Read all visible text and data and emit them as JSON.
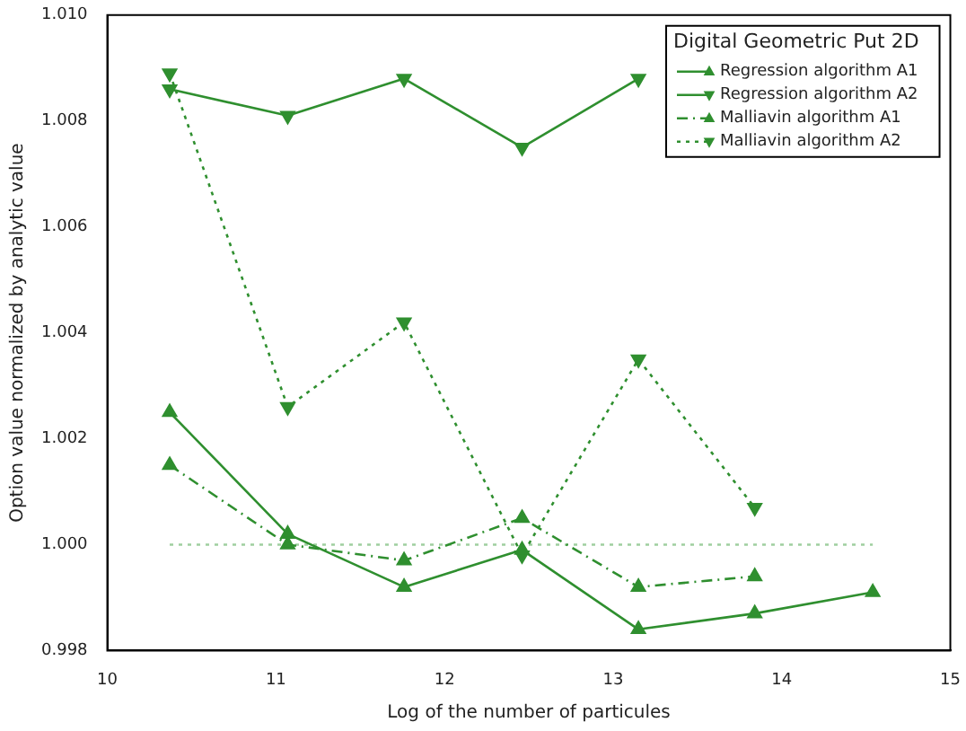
{
  "chart_data": {
    "type": "line",
    "xlabel": "Log of the number of particules",
    "ylabel": "Option value normalized by analytic value",
    "legend_title": "Digital Geometric Put 2D",
    "legend": "top right",
    "grid": false,
    "xlim": [
      10,
      15
    ],
    "xticks": [
      10,
      11,
      12,
      13,
      14,
      15
    ],
    "ylim": [
      0.998,
      1.01
    ],
    "yticks": [
      {
        "value": 0.998,
        "label": "0.998"
      },
      {
        "value": 1,
        "label": "1.000"
      },
      {
        "value": 1.002,
        "label": "1.002"
      },
      {
        "value": 1.004,
        "label": "1.004"
      },
      {
        "value": 1.006,
        "label": "1.006"
      },
      {
        "value": 1.008,
        "label": "1.008"
      },
      {
        "value": 1.01,
        "label": "1.010"
      }
    ],
    "series": [
      {
        "name": "Regression algorithm A1",
        "color": "#2f8f2f",
        "marker": "triangle",
        "line_style": "solid",
        "x": [
          10.37,
          11.07,
          11.76,
          12.46,
          13.15,
          13.84,
          14.54
        ],
        "values": [
          1.0025,
          1.0002,
          0.9992,
          0.9999,
          0.9984,
          0.9987,
          0.9991
        ]
      },
      {
        "name": "Regression algorithm A2",
        "color": "#2f8f2f",
        "marker": "triangle-down",
        "line_style": "solid",
        "x": [
          10.37,
          11.07,
          11.76,
          12.46,
          13.15
        ],
        "values": [
          1.0086,
          1.0081,
          1.0088,
          1.0075,
          1.0088
        ]
      },
      {
        "name": "Malliavin algorithm A1",
        "color": "#2f8f2f",
        "marker": "triangle",
        "line_style": "dashed",
        "x": [
          10.37,
          11.07,
          11.76,
          12.46,
          13.15,
          13.84
        ],
        "values": [
          1.0015,
          1.0,
          0.9997,
          1.0005,
          0.9992,
          0.9994
        ]
      },
      {
        "name": "Malliavin algorithm A2",
        "color": "#2f8f2f",
        "marker": "triangle-down",
        "line_style": "dotted",
        "x": [
          10.37,
          11.07,
          11.76,
          12.46,
          13.15,
          13.84
        ],
        "values": [
          1.0089,
          1.0026,
          1.0042,
          0.9998,
          1.0035,
          1.0007
        ]
      },
      {
        "color": "#9fcf9f",
        "marker": "none",
        "line_style": "dotted",
        "x": [
          10.37,
          14.54
        ],
        "values": [
          1,
          1
        ]
      }
    ]
  }
}
